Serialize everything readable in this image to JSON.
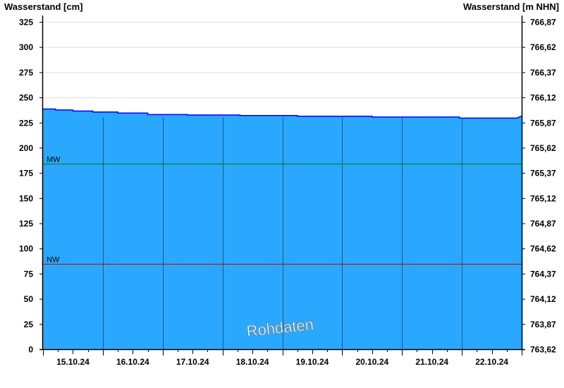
{
  "chart_data": {
    "type": "area",
    "ylabel_left": "Wasserstand [cm]",
    "ylabel_right": "Wasserstand [m NHN]",
    "ylim": [
      0,
      331
    ],
    "yticks_left": [
      0,
      25,
      50,
      75,
      100,
      125,
      150,
      175,
      200,
      225,
      250,
      275,
      300,
      325
    ],
    "yticks_right": [
      "763,62",
      "763,87",
      "764,12",
      "764,37",
      "764,62",
      "764,87",
      "765,12",
      "765,37",
      "765,62",
      "765,87",
      "766,12",
      "766,37",
      "766,62",
      "766,87"
    ],
    "xlim": [
      "2024-10-15T00:00",
      "2024-10-23T00:00"
    ],
    "xtick_labels": [
      "15.10.24",
      "16.10.24",
      "17.10.24",
      "18.10.24",
      "19.10.24",
      "20.10.24",
      "21.10.24",
      "22.10.24"
    ],
    "grid": true,
    "fill_color": "#2aa8ff",
    "line_color": "#0000ff",
    "series": [
      {
        "x": [
          "2024-10-15T00:00",
          "2024-10-15T05:00",
          "2024-10-15T12:00",
          "2024-10-15T20:00",
          "2024-10-16T06:00",
          "2024-10-16T18:00",
          "2024-10-17T10:00",
          "2024-10-18T07:00",
          "2024-10-19T06:00",
          "2024-10-20T12:00",
          "2024-10-21T23:00",
          "2024-10-22T22:00",
          "2024-10-23T00:00"
        ],
        "values": [
          238.5,
          237.5,
          236.5,
          235.5,
          234.5,
          233,
          232.5,
          232,
          231.3,
          230.5,
          229.5,
          229.5,
          231.5
        ]
      }
    ],
    "reference_lines": [
      {
        "label": "MW",
        "value": 184,
        "color": "#008000"
      },
      {
        "label": "NW",
        "value": 85,
        "color": "#cc0000"
      }
    ],
    "watermark": "Rohdaten"
  }
}
